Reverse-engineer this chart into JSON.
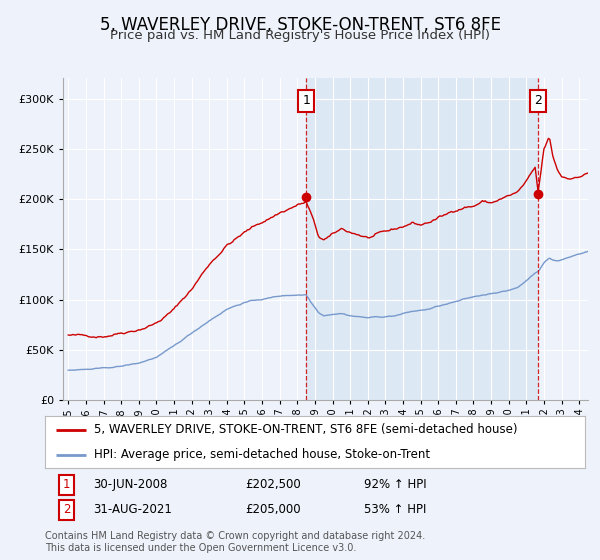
{
  "title": "5, WAVERLEY DRIVE, STOKE-ON-TRENT, ST6 8FE",
  "subtitle": "Price paid vs. HM Land Registry's House Price Index (HPI)",
  "red_label": "5, WAVERLEY DRIVE, STOKE-ON-TRENT, ST6 8FE (semi-detached house)",
  "blue_label": "HPI: Average price, semi-detached house, Stoke-on-Trent",
  "annotation1": {
    "num": "1",
    "date": "30-JUN-2008",
    "price": "£202,500",
    "pct": "92% ↑ HPI",
    "x_year": 2008.5
  },
  "annotation2": {
    "num": "2",
    "date": "31-AUG-2021",
    "price": "£205,000",
    "pct": "53% ↑ HPI",
    "x_year": 2021.67
  },
  "footer1": "Contains HM Land Registry data © Crown copyright and database right 2024.",
  "footer2": "This data is licensed under the Open Government Licence v3.0.",
  "ylim": [
    0,
    320000
  ],
  "xlim_start": 1994.7,
  "xlim_end": 2024.5,
  "red_color": "#cc0000",
  "blue_color": "#7799cc",
  "shade_color": "#dde8f5",
  "vline_color": "#cc0000",
  "dot_color": "#cc0000",
  "background_color": "#eef2fa",
  "grid_color": "#ffffff",
  "title_fontsize": 12,
  "subtitle_fontsize": 9.5,
  "axis_fontsize": 7.5,
  "legend_fontsize": 8.5,
  "annot_fontsize": 8.5,
  "footer_fontsize": 7
}
